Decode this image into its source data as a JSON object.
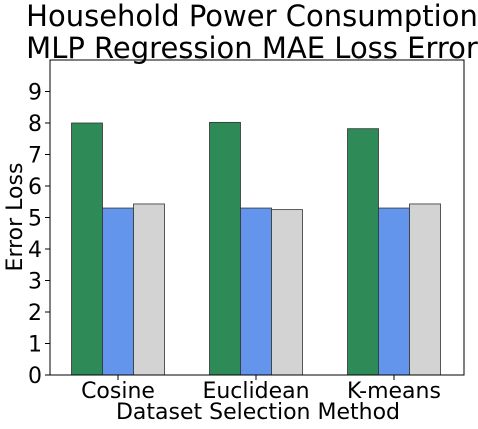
{
  "chart_data": {
    "type": "bar",
    "title": [
      "Household Power Consumption",
      "MLP Regression MAE Loss Error"
    ],
    "xlabel": "Dataset Selection Method",
    "ylabel": "Error Loss",
    "categories": [
      "Cosine",
      "Euclidean",
      "K-means"
    ],
    "yticks": [
      0,
      1,
      2,
      3,
      4,
      5,
      6,
      7,
      8,
      9
    ],
    "ylim": [
      0,
      10
    ],
    "grid": false,
    "series": [
      {
        "values": [
          8.0,
          8.02,
          7.82
        ],
        "color": "#2e8b57"
      },
      {
        "values": [
          5.3,
          5.3,
          5.3
        ],
        "color": "#6495ed"
      },
      {
        "values": [
          5.43,
          5.25,
          5.43
        ],
        "color": "#d3d3d3"
      }
    ]
  }
}
